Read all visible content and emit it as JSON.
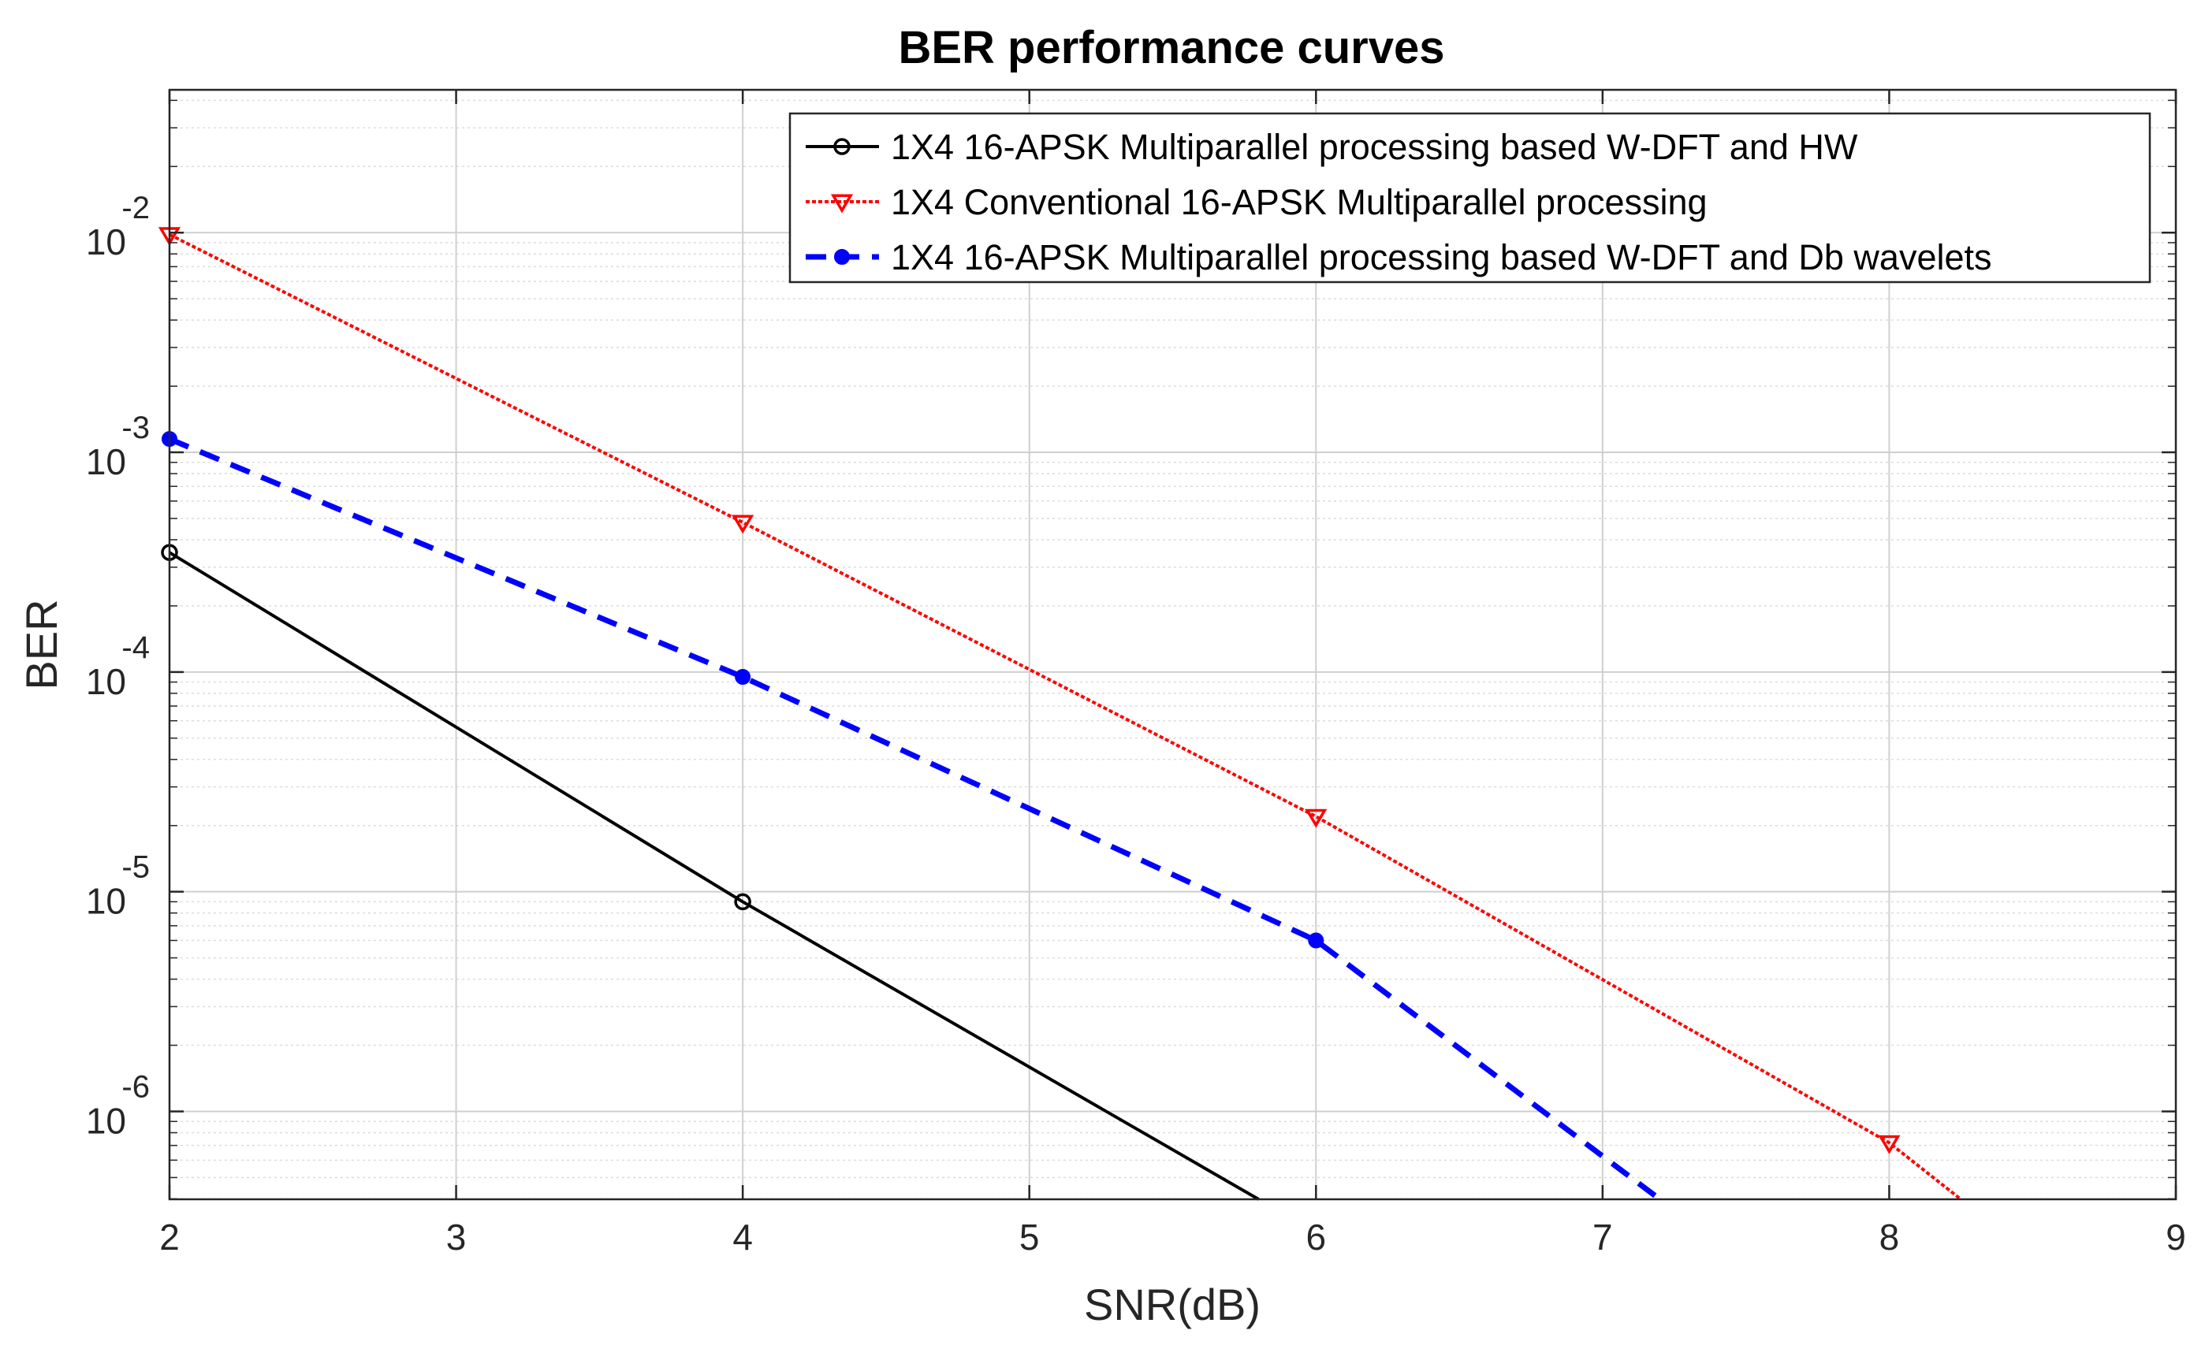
{
  "chart_data": {
    "type": "line",
    "title": "BER performance curves",
    "xlabel": "SNR(dB)",
    "ylabel": "BER",
    "xlim": [
      2,
      9
    ],
    "ylim_log10": [
      -6.4,
      -1.35
    ],
    "yscale": "log",
    "grid": true,
    "minor_grid": true,
    "legend_position": "top-right",
    "x_ticks": [
      "2",
      "3",
      "4",
      "5",
      "6",
      "7",
      "8",
      "9"
    ],
    "y_ticks": [
      {
        "base": "10",
        "exp": "-2"
      },
      {
        "base": "10",
        "exp": "-3"
      },
      {
        "base": "10",
        "exp": "-4"
      },
      {
        "base": "10",
        "exp": "-5"
      },
      {
        "base": "10",
        "exp": "-6"
      }
    ],
    "series": [
      {
        "name": "1X4 16-APSK Multiparallel processing based W-DFT and HW",
        "color": "#000000",
        "dash": "solid",
        "marker": "circle",
        "points": [
          [
            2,
            0.00035
          ],
          [
            4,
            9e-06
          ],
          [
            5.8,
            3.98e-07
          ]
        ]
      },
      {
        "name": "1X4 Conventional 16-APSK Multiparallel processing",
        "color": "#ff0000",
        "dash": "dotted",
        "marker": "triangle-down",
        "points": [
          [
            2,
            0.0098
          ],
          [
            4,
            0.00048
          ],
          [
            6,
            2.2e-05
          ],
          [
            8,
            7.2e-07
          ],
          [
            8.25,
            3.98e-07
          ]
        ]
      },
      {
        "name": "1X4 16-APSK Multiparallel processing based W-DFT and Db wavelets",
        "color": "#0000ff",
        "dash": "dashed",
        "marker": "filled-dot",
        "points": [
          [
            2,
            0.00115
          ],
          [
            4,
            9.5e-05
          ],
          [
            6,
            6e-06
          ],
          [
            7.2,
            3.98e-07
          ]
        ]
      }
    ]
  }
}
